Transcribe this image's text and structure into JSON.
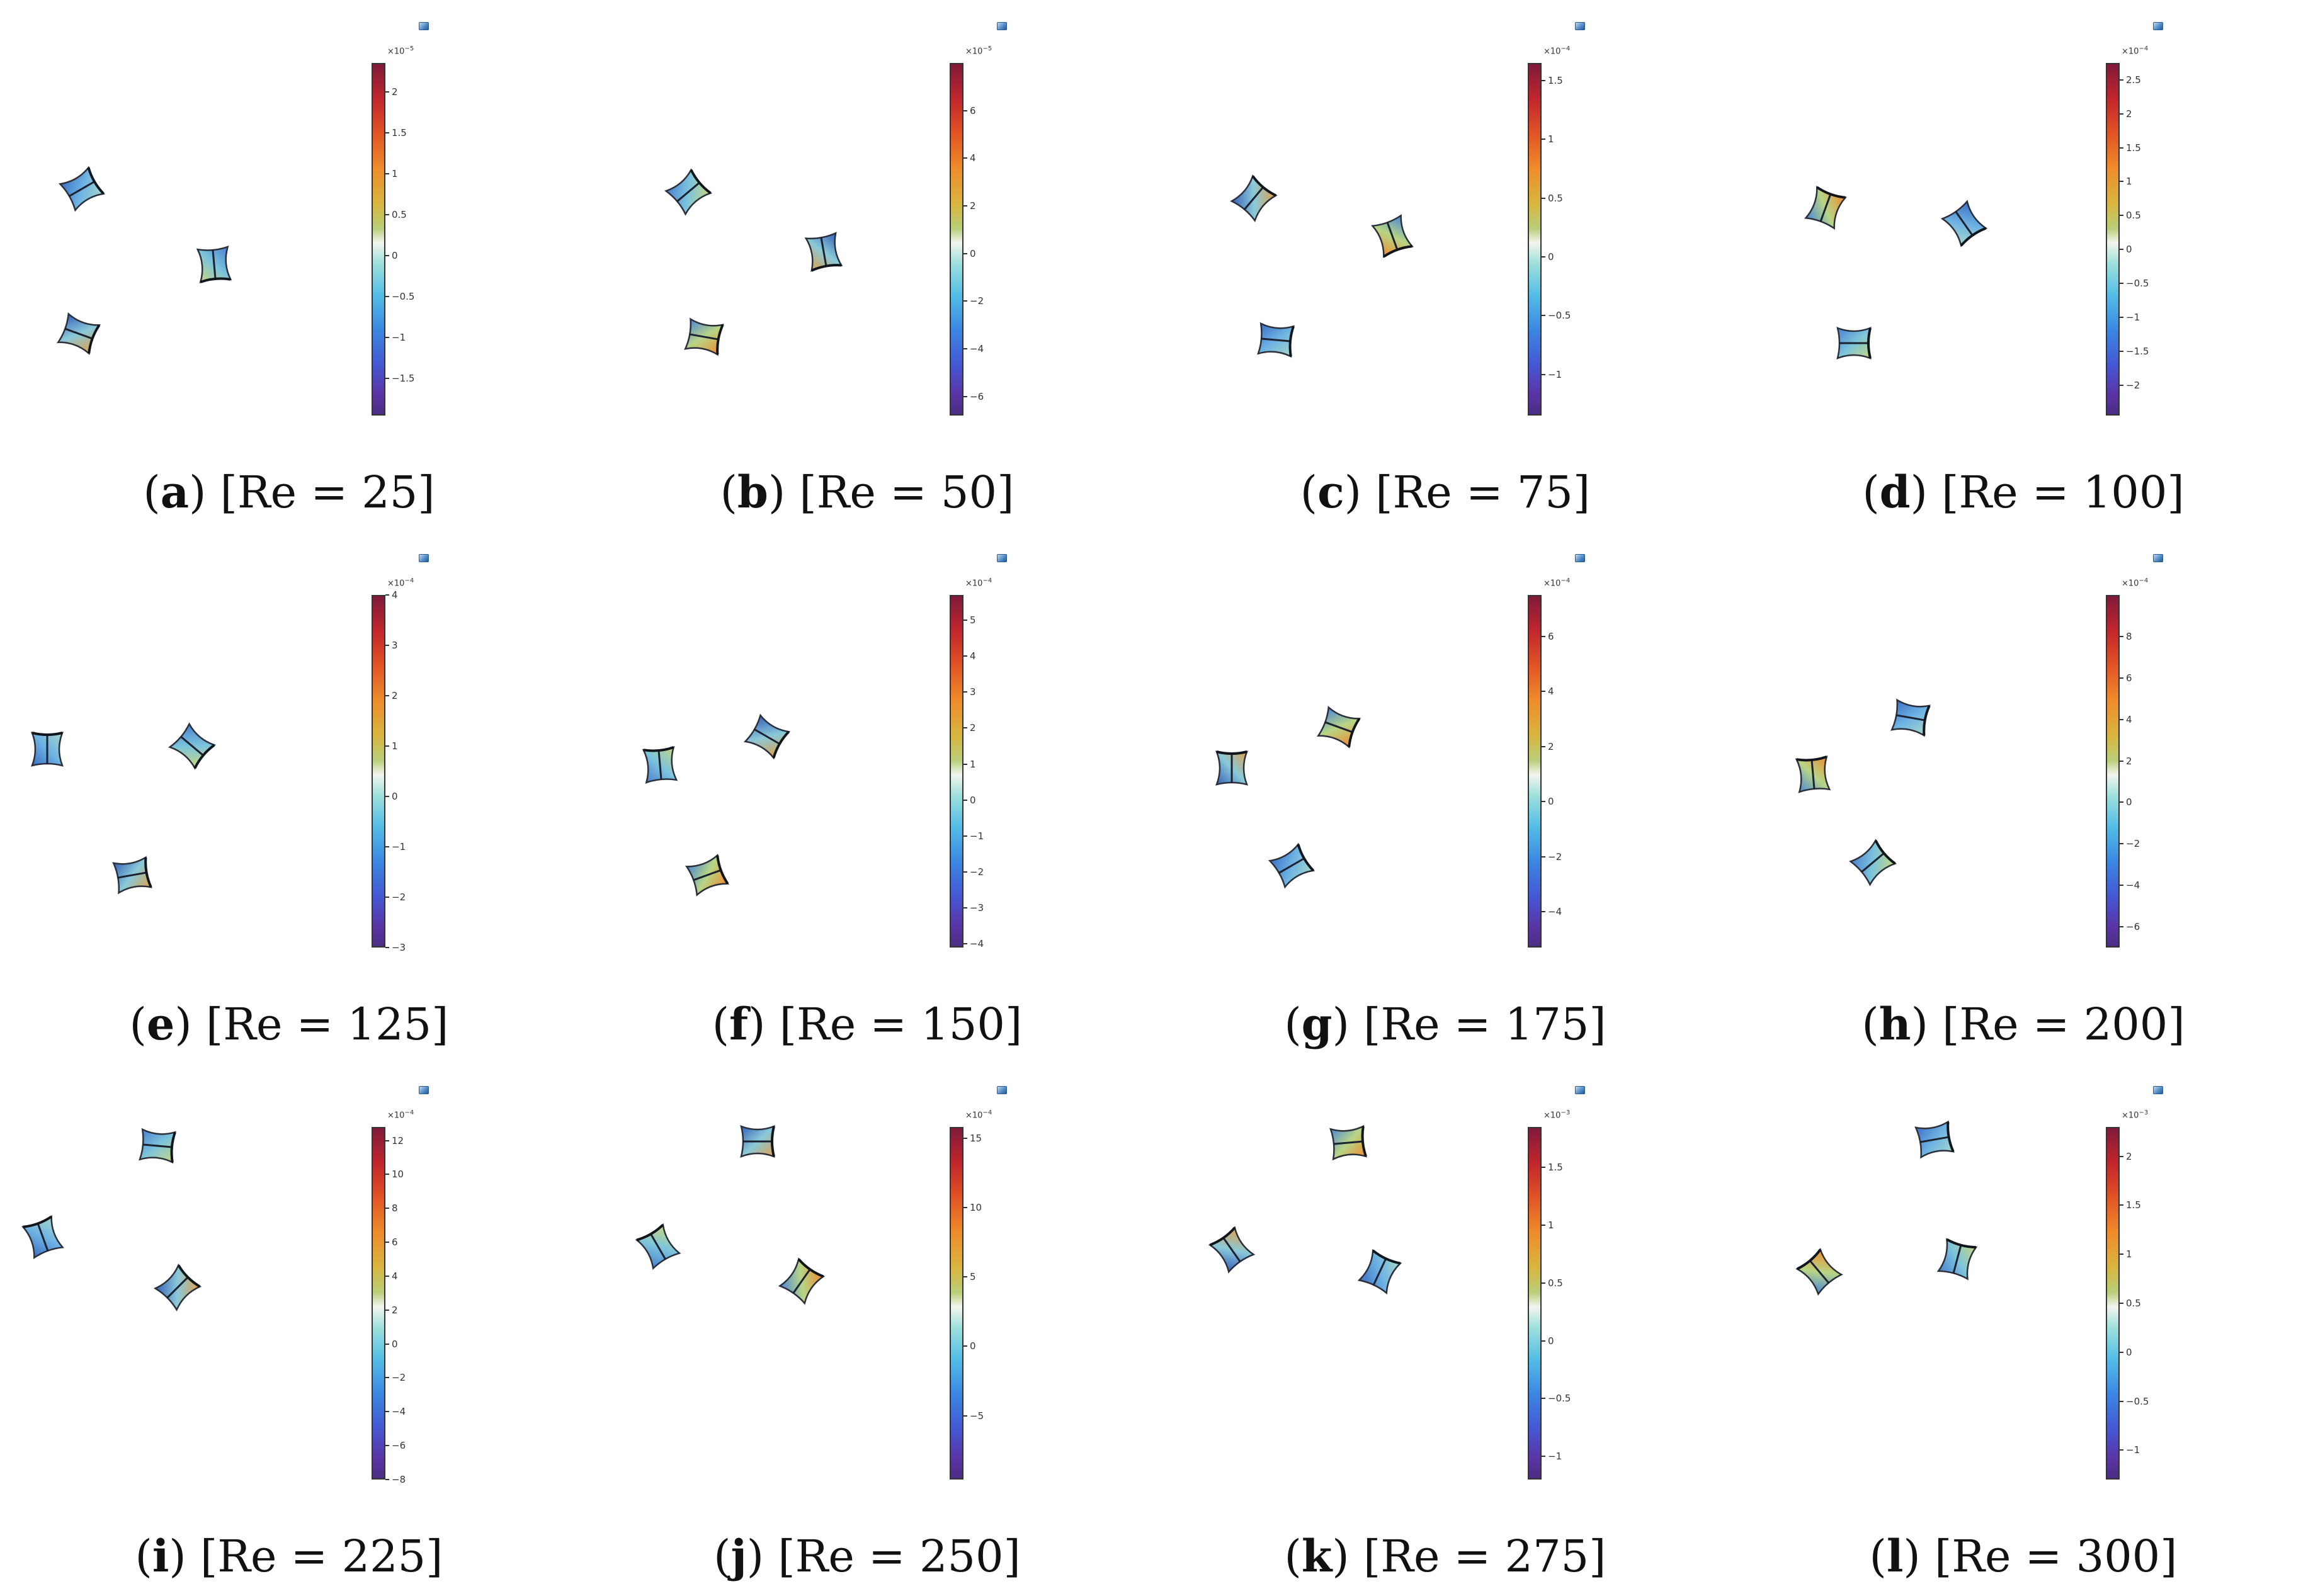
{
  "panels": [
    {
      "letter": "a",
      "label": "[Re = 25]",
      "exponent": "−5",
      "ticks": [
        "2",
        "1.5",
        "1",
        "0.5",
        "0",
        "−0.5",
        "−1",
        "−1.5"
      ],
      "range": [
        -1.95,
        2.35
      ],
      "bodies": [
        [
          130,
          300,
          -30
        ],
        [
          340,
          420,
          85
        ],
        [
          125,
          530,
          20
        ]
      ]
    },
    {
      "letter": "b",
      "label": "[Re = 50]",
      "exponent": "−5",
      "ticks": [
        "6",
        "4",
        "2",
        "0",
        "−2",
        "−4",
        "−6"
      ],
      "range": [
        -6.8,
        8.0
      ],
      "bodies": [
        [
          175,
          305,
          -40
        ],
        [
          390,
          400,
          80
        ],
        [
          200,
          535,
          10
        ]
      ]
    },
    {
      "letter": "c",
      "label": "[Re = 75]",
      "exponent": "−4",
      "ticks": [
        "1.5",
        "1",
        "0.5",
        "0",
        "−0.5",
        "−1"
      ],
      "range": [
        -1.35,
        1.65
      ],
      "bodies": [
        [
          155,
          315,
          -50
        ],
        [
          375,
          375,
          70
        ],
        [
          190,
          540,
          5
        ]
      ]
    },
    {
      "letter": "d",
      "label": "[Re = 100]",
      "exponent": "−4",
      "ticks": [
        "2.5",
        "2",
        "1.5",
        "1",
        "0.5",
        "0",
        "−0.5",
        "−1",
        "−1.5",
        "−2"
      ],
      "range": [
        -2.45,
        2.75
      ],
      "bodies": [
        [
          145,
          330,
          -70
        ],
        [
          365,
          355,
          55
        ],
        [
          190,
          545,
          0
        ]
      ]
    },
    {
      "letter": "e",
      "label": "[Re = 125]",
      "exponent": "−4",
      "ticks": [
        "4",
        "3",
        "2",
        "1",
        "0",
        "−1",
        "−2",
        "−3"
      ],
      "range": [
        -3.0,
        4.0
      ],
      "bodies": [
        [
          75,
          345,
          -90
        ],
        [
          305,
          340,
          40
        ],
        [
          210,
          545,
          -10
        ]
      ]
    },
    {
      "letter": "f",
      "label": "[Re = 150]",
      "exponent": "−4",
      "ticks": [
        "5",
        "4",
        "3",
        "2",
        "1",
        "0",
        "−1",
        "−2",
        "−3",
        "−4"
      ],
      "range": [
        -4.1,
        5.7
      ],
      "bodies": [
        [
          130,
          370,
          -95
        ],
        [
          300,
          325,
          30
        ],
        [
          205,
          545,
          -20
        ]
      ]
    },
    {
      "letter": "g",
      "label": "[Re = 175]",
      "exponent": "−4",
      "ticks": [
        "6",
        "4",
        "2",
        "0",
        "−2",
        "−4"
      ],
      "range": [
        -5.3,
        7.5
      ],
      "bodies": [
        [
          120,
          375,
          -90
        ],
        [
          290,
          310,
          20
        ],
        [
          215,
          530,
          -30
        ]
      ]
    },
    {
      "letter": "h",
      "label": "[Re = 200]",
      "exponent": "−4",
      "ticks": [
        "8",
        "6",
        "4",
        "2",
        "0",
        "−2",
        "−4",
        "−6"
      ],
      "range": [
        -7.0,
        10.0
      ],
      "bodies": [
        [
          125,
          385,
          -95
        ],
        [
          280,
          295,
          10
        ],
        [
          220,
          525,
          -40
        ]
      ]
    },
    {
      "letter": "i",
      "label": "[Re = 225]",
      "exponent": "−4",
      "ticks": [
        "12",
        "10",
        "8",
        "6",
        "4",
        "2",
        "0",
        "−2",
        "−4",
        "−6",
        "−8"
      ],
      "range": [
        -8.0,
        12.8
      ],
      "bodies": [
        [
          68,
          275,
          -110
        ],
        [
          250,
          130,
          5
        ],
        [
          282,
          355,
          -45
        ]
      ]
    },
    {
      "letter": "j",
      "label": "[Re = 250]",
      "exponent": "−4",
      "ticks": [
        "15",
        "10",
        "5",
        "0",
        "−5"
      ],
      "range": [
        -9.6,
        15.8
      ],
      "bodies": [
        [
          127,
          290,
          -120
        ],
        [
          285,
          123,
          0
        ],
        [
          355,
          345,
          -55
        ]
      ]
    },
    {
      "letter": "k",
      "label": "[Re = 275]",
      "exponent": "−3",
      "ticks": [
        "1.5",
        "1",
        "0.5",
        "0",
        "−0.5",
        "−1"
      ],
      "range": [
        -1.2,
        1.85
      ],
      "bodies": [
        [
          120,
          295,
          -125
        ],
        [
          305,
          125,
          -5
        ],
        [
          355,
          330,
          -65
        ]
      ]
    },
    {
      "letter": "l",
      "label": "[Re = 300]",
      "exponent": "−3",
      "ticks": [
        "2",
        "1.5",
        "1",
        "0.5",
        "0",
        "−0.5",
        "−1"
      ],
      "range": [
        -1.3,
        2.3
      ],
      "bodies": [
        [
          135,
          330,
          -130
        ],
        [
          318,
          120,
          -10
        ],
        [
          354,
          310,
          -75
        ]
      ]
    }
  ]
}
